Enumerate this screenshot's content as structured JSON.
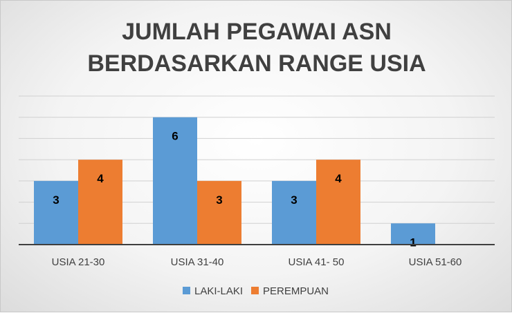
{
  "chart_data": {
    "type": "bar",
    "title_lines": [
      "JUMLAH PEGAWAI ASN",
      "BERDASARKAN RANGE USIA"
    ],
    "categories": [
      "USIA 21-30",
      "USIA 31-40",
      "USIA 41- 50",
      "USIA 51-60"
    ],
    "series": [
      {
        "name": "LAKI-LAKI",
        "values": [
          3,
          6,
          3,
          1
        ],
        "color": "#5B9BD5"
      },
      {
        "name": "PEREMPUAN",
        "values": [
          4,
          3,
          4,
          null
        ],
        "color": "#ED7D31"
      }
    ],
    "ylim": [
      0,
      7
    ],
    "grid": true,
    "legend_position": "bottom"
  }
}
